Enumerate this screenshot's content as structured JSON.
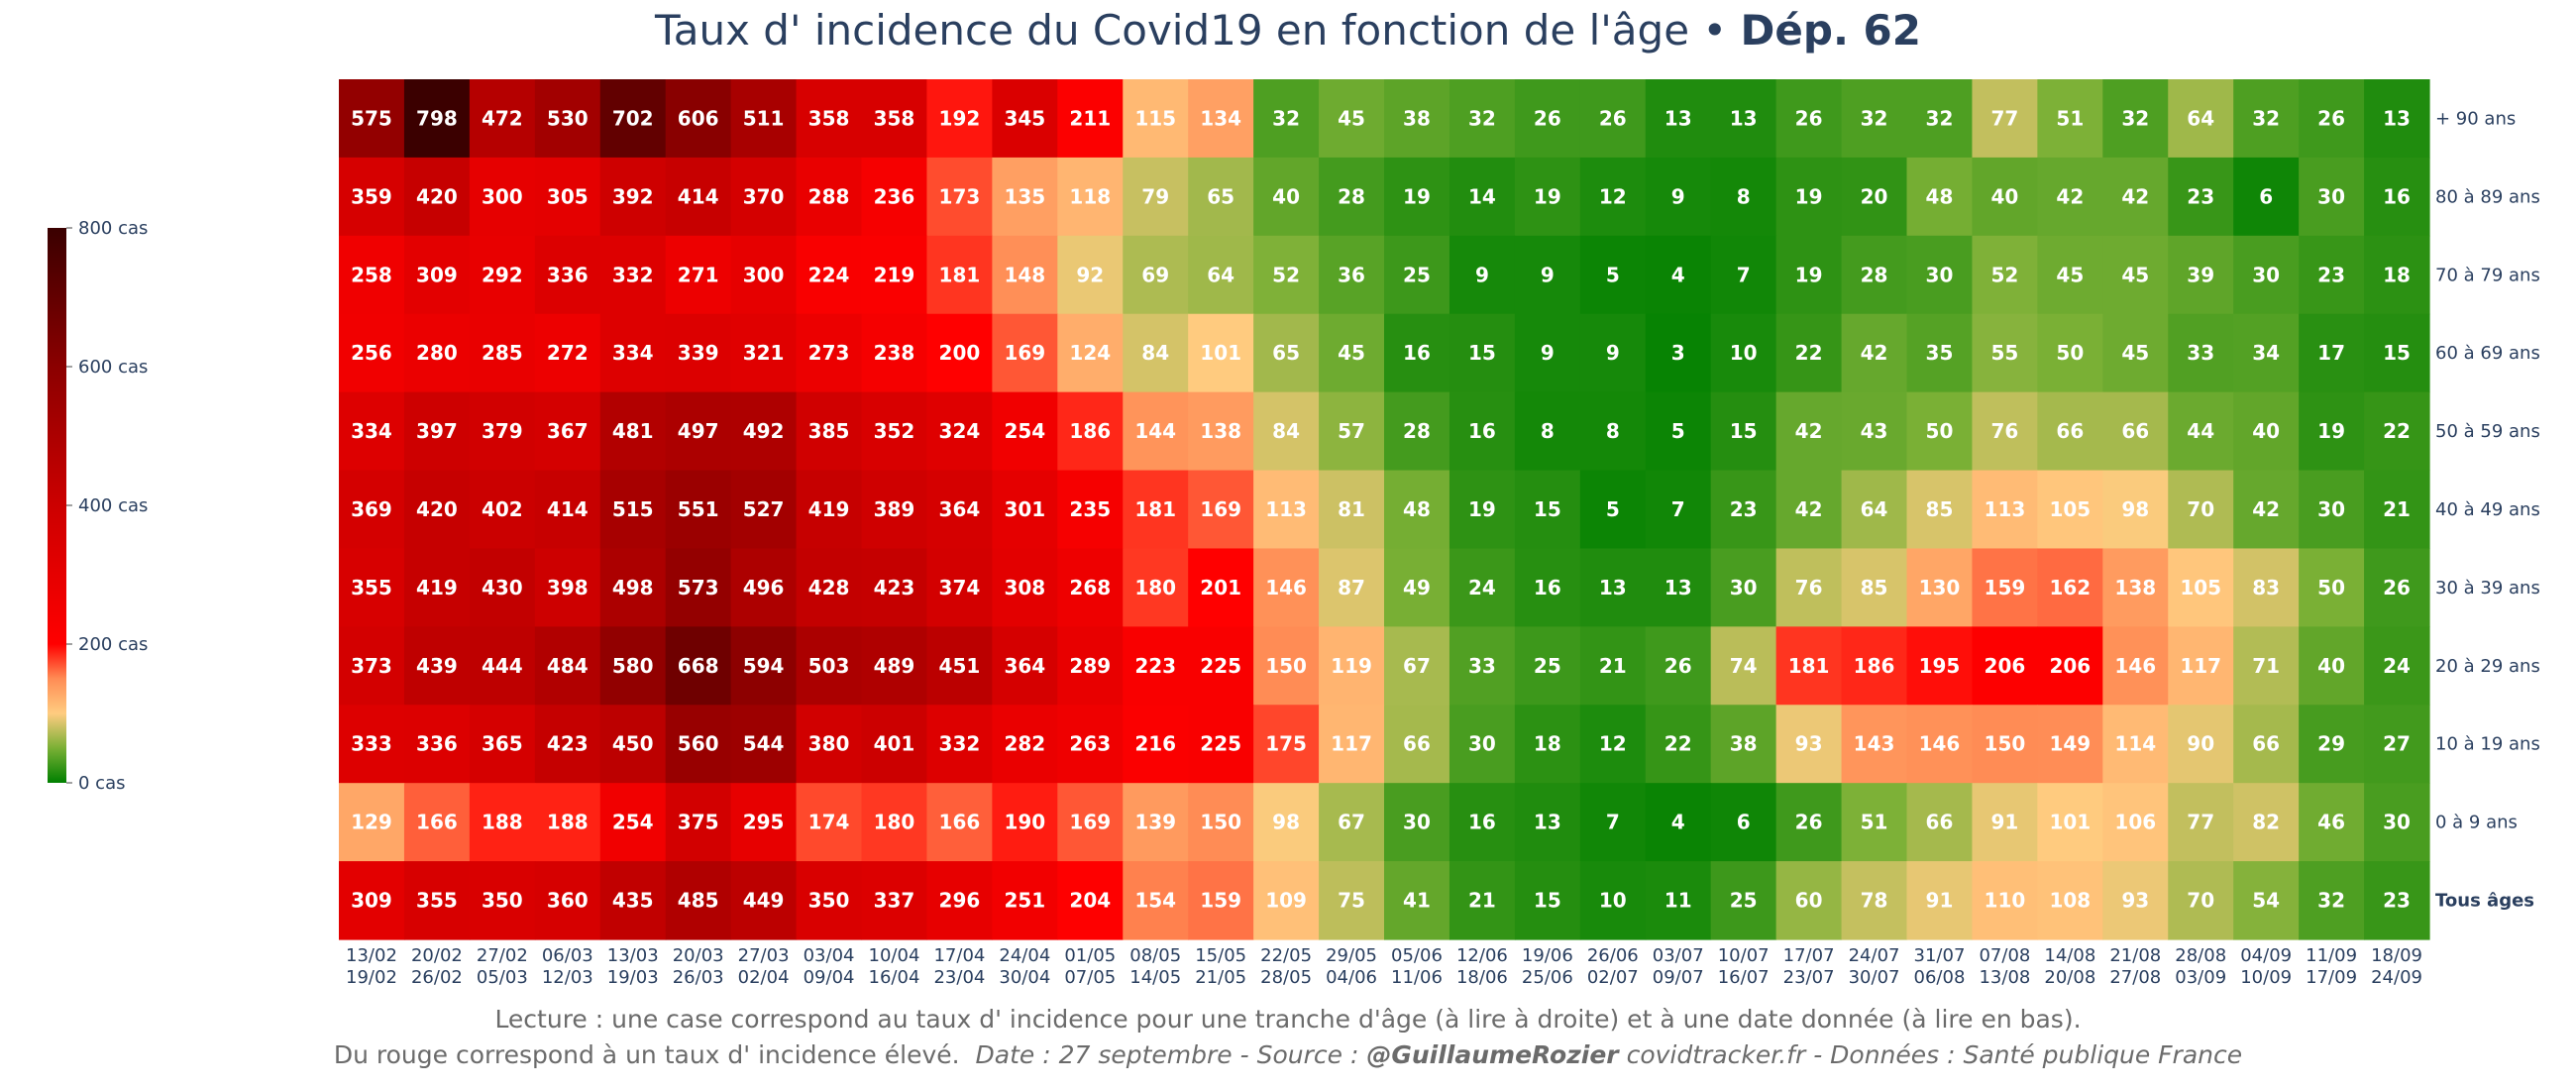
{
  "title": {
    "main": "Taux d' incidence du Covid19 en fonction de l'âge",
    "separator": "•",
    "dept": "Dép. 62"
  },
  "footer": {
    "line1": "Lecture : une case correspond au taux d' incidence pour une tranche d'âge (à lire à droite) et à une date donnée (à lire en bas).",
    "line2_a": "Du rouge correspond à un taux d' incidence élevé.",
    "line2_date": "Date : 27 septembre - Source :",
    "line2_author": "@GuillaumeRozier",
    "line2_rest": "covidtracker.fr - Données : Santé publique France"
  },
  "chart_data": {
    "type": "heatmap",
    "title": "Taux d' incidence du Covid19 en fonction de l'âge • Dép. 62",
    "x": [
      "13/02\n19/02",
      "20/02\n26/02",
      "27/02\n05/03",
      "06/03\n12/03",
      "13/03\n19/03",
      "20/03\n26/03",
      "27/03\n02/04",
      "03/04\n09/04",
      "10/04\n16/04",
      "17/04\n23/04",
      "24/04\n30/04",
      "01/05\n07/05",
      "08/05\n14/05",
      "15/05\n21/05",
      "22/05\n28/05",
      "29/05\n04/06",
      "05/06\n11/06",
      "12/06\n18/06",
      "19/06\n25/06",
      "26/06\n02/07",
      "03/07\n09/07",
      "10/07\n16/07",
      "17/07\n23/07",
      "24/07\n30/07",
      "31/07\n06/08",
      "07/08\n13/08",
      "14/08\n20/08",
      "21/08\n27/08",
      "28/08\n03/09",
      "04/09\n10/09",
      "11/09\n17/09",
      "18/09\n24/09"
    ],
    "y": [
      "+ 90 ans",
      "80 à 89 ans",
      "70 à 79 ans",
      "60 à 69 ans",
      "50 à 59 ans",
      "40 à 49 ans",
      "30 à 39 ans",
      "20 à 29 ans",
      "10 à 19 ans",
      "0 à 9 ans",
      "Tous âges"
    ],
    "z": [
      [
        575,
        798,
        472,
        530,
        702,
        606,
        511,
        358,
        358,
        192,
        345,
        211,
        115,
        134,
        32,
        45,
        38,
        32,
        26,
        26,
        13,
        13,
        26,
        32,
        32,
        77,
        51,
        32,
        64,
        32,
        26,
        13
      ],
      [
        359,
        420,
        300,
        305,
        392,
        414,
        370,
        288,
        236,
        173,
        135,
        118,
        79,
        65,
        40,
        28,
        19,
        14,
        19,
        12,
        9,
        8,
        19,
        20,
        48,
        40,
        42,
        42,
        23,
        6,
        30,
        16
      ],
      [
        258,
        309,
        292,
        336,
        332,
        271,
        300,
        224,
        219,
        181,
        148,
        92,
        69,
        64,
        52,
        36,
        25,
        9,
        9,
        5,
        4,
        7,
        19,
        28,
        30,
        52,
        45,
        45,
        39,
        30,
        23,
        18
      ],
      [
        256,
        280,
        285,
        272,
        334,
        339,
        321,
        273,
        238,
        200,
        169,
        124,
        84,
        101,
        65,
        45,
        16,
        15,
        9,
        9,
        3,
        10,
        22,
        42,
        35,
        55,
        50,
        45,
        33,
        34,
        17,
        15
      ],
      [
        334,
        397,
        379,
        367,
        481,
        497,
        492,
        385,
        352,
        324,
        254,
        186,
        144,
        138,
        84,
        57,
        28,
        16,
        8,
        8,
        5,
        15,
        42,
        43,
        50,
        76,
        66,
        66,
        44,
        40,
        19,
        22
      ],
      [
        369,
        420,
        402,
        414,
        515,
        551,
        527,
        419,
        389,
        364,
        301,
        235,
        181,
        169,
        113,
        81,
        48,
        19,
        15,
        5,
        7,
        23,
        42,
        64,
        85,
        113,
        105,
        98,
        70,
        42,
        30,
        21
      ],
      [
        355,
        419,
        430,
        398,
        498,
        573,
        496,
        428,
        423,
        374,
        308,
        268,
        180,
        201,
        146,
        87,
        49,
        24,
        16,
        13,
        13,
        30,
        76,
        85,
        130,
        159,
        162,
        138,
        105,
        83,
        50,
        26
      ],
      [
        373,
        439,
        444,
        484,
        580,
        668,
        594,
        503,
        489,
        451,
        364,
        289,
        223,
        225,
        150,
        119,
        67,
        33,
        25,
        21,
        26,
        74,
        181,
        186,
        195,
        206,
        206,
        146,
        117,
        71,
        40,
        24
      ],
      [
        333,
        336,
        365,
        423,
        450,
        560,
        544,
        380,
        401,
        332,
        282,
        263,
        216,
        225,
        175,
        117,
        66,
        30,
        18,
        12,
        22,
        38,
        93,
        143,
        146,
        150,
        149,
        114,
        90,
        66,
        29,
        27
      ],
      [
        129,
        166,
        188,
        188,
        254,
        375,
        295,
        174,
        180,
        166,
        190,
        169,
        139,
        150,
        98,
        67,
        30,
        16,
        13,
        7,
        4,
        6,
        26,
        51,
        66,
        91,
        101,
        106,
        77,
        82,
        46,
        30
      ],
      [
        309,
        355,
        350,
        360,
        435,
        485,
        449,
        350,
        337,
        296,
        251,
        204,
        154,
        159,
        109,
        75,
        41,
        21,
        15,
        10,
        11,
        25,
        60,
        78,
        91,
        110,
        108,
        93,
        70,
        54,
        32,
        23
      ]
    ],
    "zmin": 0,
    "zmax": 800,
    "colorscale": [
      [
        0,
        "#008000"
      ],
      [
        0.0625,
        "#7ab035"
      ],
      [
        0.125,
        "#ffcc80"
      ],
      [
        0.1875,
        "#ff8c55"
      ],
      [
        0.25,
        "#ff0000"
      ],
      [
        0.5,
        "#cc0000"
      ],
      [
        0.75,
        "#8b0000"
      ],
      [
        1,
        "#3a0000"
      ]
    ],
    "colorbar": {
      "ticks": [
        0,
        200,
        400,
        600,
        800
      ],
      "ticklabels": [
        "0 cas",
        "200 cas",
        "400 cas",
        "600 cas",
        "800 cas"
      ]
    },
    "bold_rows": [
      "Tous âges"
    ]
  }
}
